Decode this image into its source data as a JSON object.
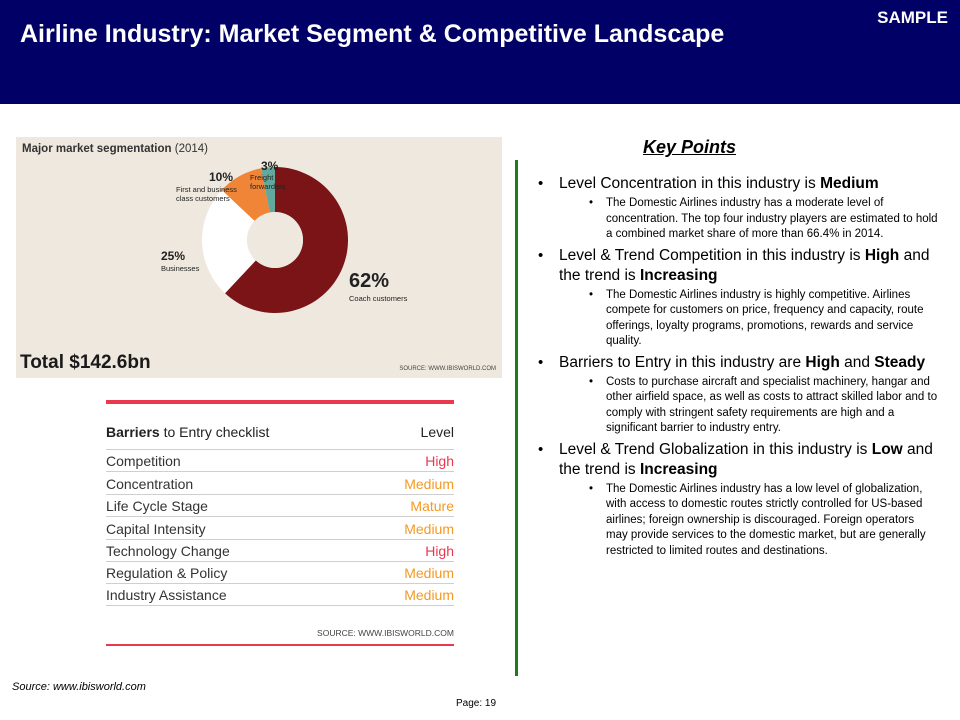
{
  "header": {
    "title": "Airline Industry:  Market Segment & Competitive Landscape",
    "badge": "SAMPLE"
  },
  "colors": {
    "header_bg": "#000066",
    "accent_red": "#e8394e",
    "level_orange": "#f39a24",
    "divider_green": "#1e7b1e"
  },
  "chart_data": {
    "type": "pie",
    "title": "Major market segmentation",
    "title_year": "(2014)",
    "donut": true,
    "slices": [
      {
        "label": "Coach customers",
        "value": 62,
        "display": "62%",
        "color": "#7a1416"
      },
      {
        "label": "Businesses",
        "value": 25,
        "display": "25%",
        "color": "#ffffff"
      },
      {
        "label": "First and business class customers",
        "value": 10,
        "display": "10%",
        "color": "#f08437"
      },
      {
        "label": "Freight forwarders",
        "value": 3,
        "display": "3%",
        "color": "#62a89c"
      }
    ],
    "total": "Total $142.6bn",
    "source": "SOURCE: WWW.IBISWORLD.COM"
  },
  "barriers": {
    "heading_bold": "Barriers",
    "heading_rest": " to Entry checklist",
    "level_header": "Level",
    "rows": [
      {
        "factor": "Competition",
        "level": "High",
        "color": "#e8394e"
      },
      {
        "factor": "Concentration",
        "level": "Medium",
        "color": "#f39a24"
      },
      {
        "factor": "Life Cycle Stage",
        "level": "Mature",
        "color": "#f39a24"
      },
      {
        "factor": "Capital Intensity",
        "level": "Medium",
        "color": "#f39a24"
      },
      {
        "factor": "Technology Change",
        "level": "High",
        "color": "#e8394e"
      },
      {
        "factor": "Regulation & Policy",
        "level": "Medium",
        "color": "#f39a24"
      },
      {
        "factor": "Industry Assistance",
        "level": "Medium",
        "color": "#f39a24"
      }
    ],
    "source": "SOURCE: WWW.IBISWORLD.COM"
  },
  "key_points": {
    "title": "Key Points",
    "items": [
      {
        "main": [
          {
            "t": "Level Concentration in this industry is "
          },
          {
            "t": "Medium",
            "b": true
          }
        ],
        "sub": "The Domestic Airlines industry has a moderate level of concentration. The top four industry players are estimated to hold a combined market share of more than 66.4% in 2014."
      },
      {
        "main": [
          {
            "t": "Level & Trend Competition in this industry is "
          },
          {
            "t": "High",
            "b": true
          },
          {
            "t": " and the trend is "
          },
          {
            "t": "Increasing",
            "b": true
          }
        ],
        "sub": "The Domestic Airlines industry is highly competitive. Airlines compete for customers on price, frequency and capacity, route offerings, loyalty programs, promotions, rewards and service quality."
      },
      {
        "main": [
          {
            "t": "Barriers to Entry in this industry are "
          },
          {
            "t": "High",
            "b": true
          },
          {
            "t": " and "
          },
          {
            "t": "Steady",
            "b": true
          }
        ],
        "sub": "Costs to purchase aircraft and specialist machinery, hangar and other airfield space, as well as costs to attract skilled labor and to comply with stringent safety requirements are high and a significant barrier to industry entry."
      },
      {
        "main": [
          {
            "t": "Level & Trend Globalization in this industry is "
          },
          {
            "t": "Low",
            "b": true
          },
          {
            "t": " and the trend is "
          },
          {
            "t": "Increasing",
            "b": true
          }
        ],
        "sub": "The Domestic Airlines industry has a low level of globalization, with access to domestic routes strictly controlled for US-based airlines; foreign ownership is discouraged. Foreign operators may provide services to the domestic market, but are generally restricted to limited routes and destinations."
      }
    ]
  },
  "footer": {
    "source": "Source:  www.ibisworld.com",
    "page": "Page: 19"
  }
}
